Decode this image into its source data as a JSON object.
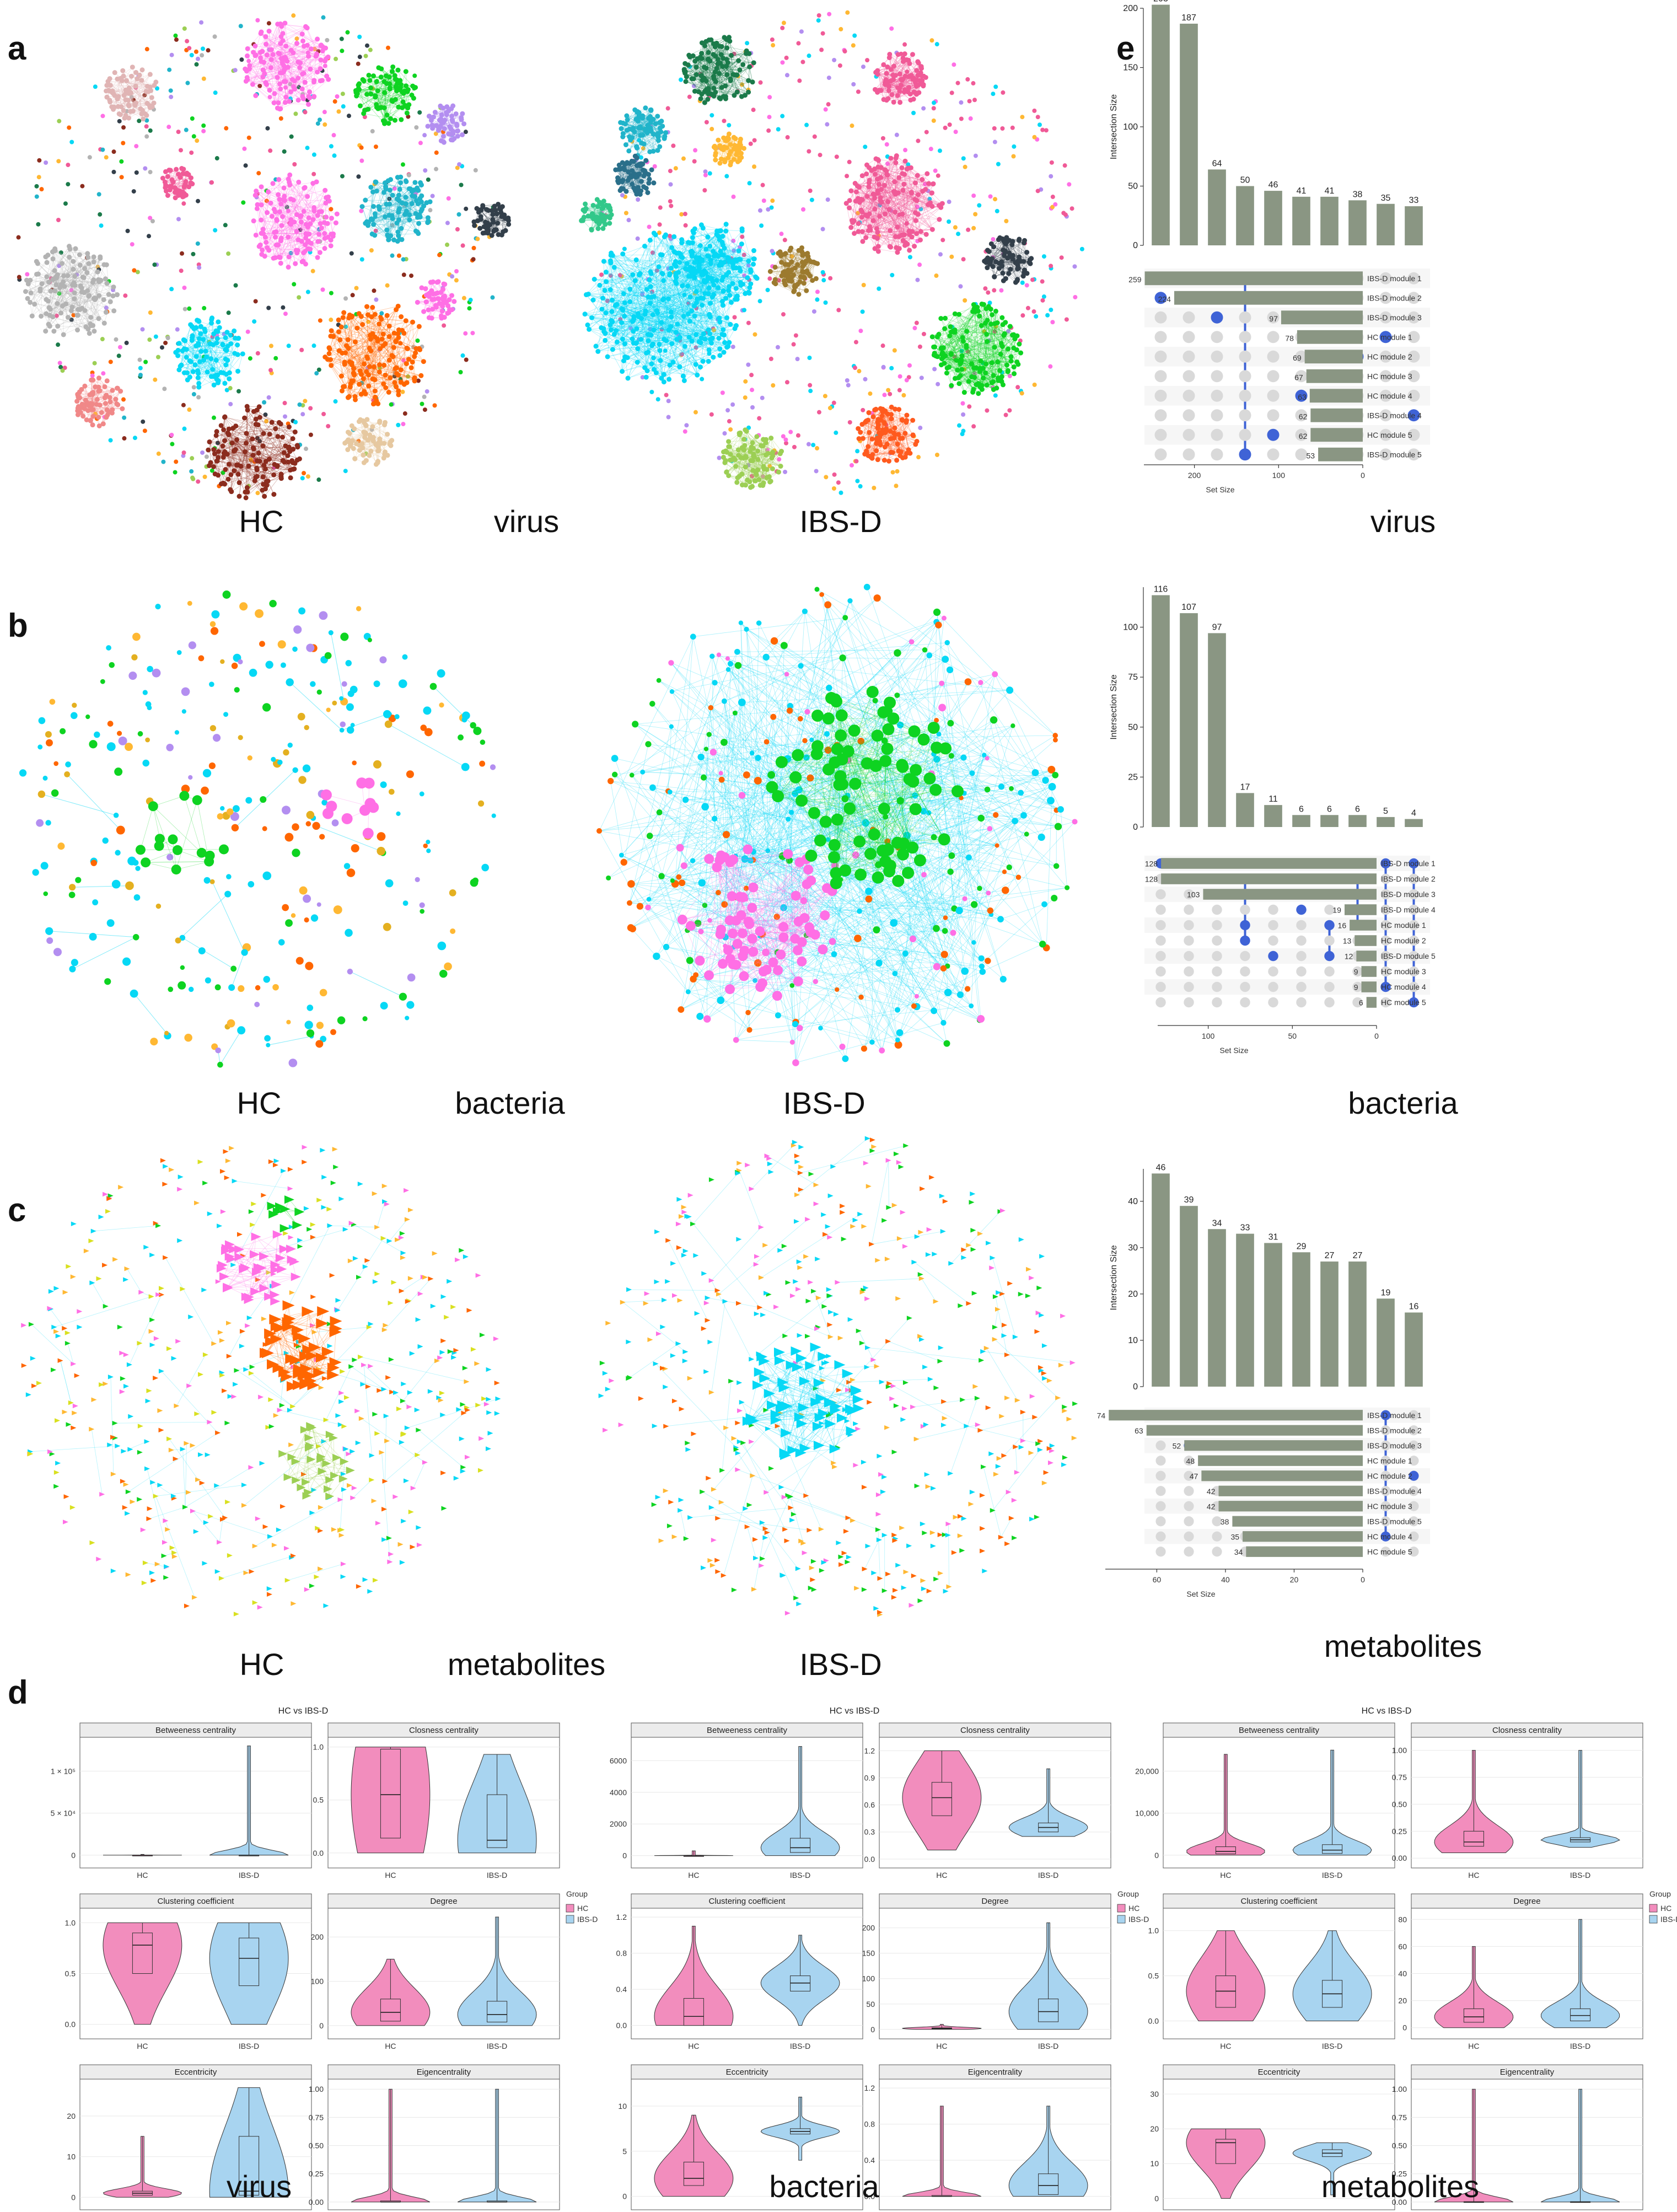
{
  "panel_labels": {
    "a": "a",
    "b": "b",
    "c": "c",
    "d": "d",
    "e": "e"
  },
  "networks": {
    "virus": {
      "caption": "virus",
      "groups": [
        "HC",
        "IBS-D"
      ]
    },
    "bacteria": {
      "caption": "bacteria",
      "groups": [
        "HC",
        "IBS-D"
      ]
    },
    "metabolites": {
      "caption": "metabolites",
      "groups": [
        "HC",
        "IBS-D"
      ]
    }
  },
  "colors": {
    "bar": "#8a9683",
    "dot_on": "#3f63d6",
    "dot_off": "#d9d9d9",
    "hc": "#f28dbd",
    "ibsd": "#a8d4f0",
    "net": [
      "#ff6fe5",
      "#0ed321",
      "#06d8f5",
      "#ff6600",
      "#8b2c1e",
      "#b3b3b3",
      "#21b4ca",
      "#1b7a4a",
      "#f05a97",
      "#9ccf54",
      "#ffb833",
      "#b38ef0",
      "#333f4a"
    ]
  },
  "chart_data": [
    {
      "type": "bar",
      "name": "upset-virus",
      "caption": "virus",
      "ylabel": "Intersection Size",
      "xlabel": "Set Size",
      "ylim": [
        0,
        200
      ],
      "yticks": [
        0,
        50,
        100,
        150,
        200
      ],
      "intersection_sizes": [
        203,
        187,
        64,
        50,
        46,
        41,
        41,
        38,
        35,
        33
      ],
      "sets": [
        "IBS-D module 1",
        "IBS-D module 2",
        "IBS-D module 3",
        "HC module 1",
        "HC module 2",
        "HC module 3",
        "HC module 4",
        "IBS-D module 4",
        "HC module 5",
        "IBS-D module 5"
      ],
      "set_sizes": [
        259,
        224,
        97,
        78,
        69,
        67,
        63,
        62,
        62,
        53
      ],
      "set_axis_max": 260,
      "set_ticks": [
        200,
        100,
        0
      ],
      "membership": [
        [
          1
        ],
        [
          0
        ],
        [
          2
        ],
        [
          0,
          9
        ],
        [
          8
        ],
        [
          6
        ],
        [
          9
        ],
        [
          4
        ],
        [
          3
        ],
        [
          7
        ]
      ]
    },
    {
      "type": "bar",
      "name": "upset-bacteria",
      "caption": "bacteria",
      "ylabel": "Intersection Size",
      "xlabel": "Set Size",
      "ylim": [
        0,
        120
      ],
      "yticks": [
        0,
        25,
        50,
        75,
        100
      ],
      "intersection_sizes": [
        116,
        107,
        97,
        17,
        11,
        6,
        6,
        6,
        5,
        4
      ],
      "sets": [
        "IBS-D module 1",
        "IBS-D module 2",
        "IBS-D module 3",
        "IBS-D module 4",
        "HC module 1",
        "HC module 2",
        "IBS-D module 5",
        "HC module 3",
        "HC module 4",
        "HC module 5"
      ],
      "set_sizes": [
        128,
        128,
        103,
        19,
        16,
        13,
        12,
        9,
        9,
        6
      ],
      "set_axis_max": 130,
      "set_ticks": [
        100,
        50,
        0
      ],
      "membership": [
        [
          0
        ],
        [
          1
        ],
        [
          2
        ],
        [
          1,
          4,
          5
        ],
        [
          6
        ],
        [
          3
        ],
        [
          4,
          6
        ],
        [
          1,
          4
        ],
        [
          0,
          8
        ],
        [
          0,
          9
        ]
      ]
    },
    {
      "type": "bar",
      "name": "upset-metabolites",
      "caption": "metabolites",
      "ylabel": "Intersection Size",
      "xlabel": "Set Size",
      "ylim": [
        0,
        47
      ],
      "yticks": [
        0,
        10,
        20,
        30,
        40
      ],
      "intersection_sizes": [
        46,
        39,
        34,
        33,
        31,
        29,
        27,
        27,
        19,
        16
      ],
      "sets": [
        "IBS-D module 1",
        "IBS-D module 2",
        "IBS-D module 3",
        "HC module 1",
        "HC module 2",
        "IBS-D module 4",
        "HC module 3",
        "IBS-D module 5",
        "HC module 4",
        "HC module 5"
      ],
      "set_sizes": [
        74,
        63,
        52,
        48,
        47,
        42,
        42,
        38,
        35,
        34
      ],
      "set_axis_max": 75,
      "set_ticks": [
        60,
        40,
        20,
        0
      ],
      "membership": [
        [
          1
        ],
        [
          2
        ],
        [
          3
        ],
        [
          0
        ],
        [
          7
        ],
        [
          5
        ],
        [
          9
        ],
        [
          6
        ],
        [
          0,
          8
        ],
        [
          4
        ]
      ]
    }
  ],
  "violins": {
    "title": "HC vs IBS-D",
    "legend_title": "Group",
    "legend_items": [
      "HC",
      "IBS-D"
    ],
    "x_labels": [
      "HC",
      "IBS-D"
    ],
    "facet_names": [
      "Betweeness centrality",
      "Closness centrality",
      "Clustering coefficient",
      "Degree",
      "Eccentricity",
      "Eigencentrality"
    ],
    "panels": [
      {
        "caption": "virus",
        "facets": [
          {
            "yticks": [
              "1 × 10⁵",
              "5 × 10⁴",
              "0"
            ],
            "tickpos": [
              100000.0,
              50000.0,
              0
            ],
            "ymin": -10000.0,
            "ymax": 135000.0,
            "hc": {
              "lo": 0,
              "hi": 900,
              "q1": 0,
              "med": 0,
              "q3": 0
            },
            "ibsd": {
              "lo": 0,
              "hi": 130000.0,
              "q1": 0,
              "med": 0,
              "q3": 0
            }
          },
          {
            "yticks": [
              "1.0",
              "0.5",
              "0.0"
            ],
            "tickpos": [
              1.0,
              0.5,
              0.0
            ],
            "ymin": -0.1,
            "ymax": 1.05,
            "hc": {
              "lo": 0.0,
              "hi": 1.0,
              "q1": 0.14,
              "med": 0.55,
              "q3": 0.98
            },
            "ibsd": {
              "lo": 0.0,
              "hi": 0.93,
              "q1": 0.05,
              "med": 0.12,
              "q3": 0.55
            }
          },
          {
            "yticks": [
              "1.0",
              "0.5",
              "0.0"
            ],
            "tickpos": [
              1.0,
              0.5,
              0.0
            ],
            "ymin": -0.1,
            "ymax": 1.1,
            "hc": {
              "lo": 0.0,
              "hi": 1.0,
              "q1": 0.5,
              "med": 0.78,
              "q3": 0.9
            },
            "ibsd": {
              "lo": 0.0,
              "hi": 1.0,
              "q1": 0.38,
              "med": 0.65,
              "q3": 0.85
            }
          },
          {
            "yticks": [
              "200",
              "100",
              "0"
            ],
            "tickpos": [
              200,
              100,
              0
            ],
            "ymin": -20,
            "ymax": 255,
            "hc": {
              "lo": 0,
              "hi": 150,
              "q1": 10,
              "med": 30,
              "q3": 60
            },
            "ibsd": {
              "lo": 0,
              "hi": 245,
              "q1": 8,
              "med": 25,
              "q3": 55
            }
          },
          {
            "yticks": [
              "20",
              "10",
              "0"
            ],
            "tickpos": [
              20,
              10,
              0
            ],
            "ymin": -2,
            "ymax": 28,
            "hc": {
              "lo": 0,
              "hi": 15,
              "q1": 0.5,
              "med": 1,
              "q3": 1.5
            },
            "ibsd": {
              "lo": 0,
              "hi": 27,
              "q1": 0.5,
              "med": 1.5,
              "q3": 15
            }
          },
          {
            "yticks": [
              "1.00",
              "0.75",
              "0.50",
              "0.25",
              "0.00"
            ],
            "tickpos": [
              1.0,
              0.75,
              0.5,
              0.25,
              0.0
            ],
            "ymin": -0.03,
            "ymax": 1.05,
            "hc": {
              "lo": 0,
              "hi": 1.0,
              "q1": 0,
              "med": 0,
              "q3": 0.01
            },
            "ibsd": {
              "lo": 0,
              "hi": 1.0,
              "q1": 0,
              "med": 0,
              "q3": 0.01
            }
          }
        ]
      },
      {
        "caption": "bacteria",
        "facets": [
          {
            "yticks": [
              "6000",
              "4000",
              "2000",
              "0"
            ],
            "tickpos": [
              6000,
              4000,
              2000,
              0
            ],
            "ymin": -500,
            "ymax": 7200,
            "hc": {
              "lo": 0,
              "hi": 300,
              "q1": 0,
              "med": 0,
              "q3": 0
            },
            "ibsd": {
              "lo": 0,
              "hi": 6900,
              "q1": 200,
              "med": 500,
              "q3": 1100
            }
          },
          {
            "yticks": [
              "1.2",
              "0.9",
              "0.6",
              "0.3",
              "0.0"
            ],
            "tickpos": [
              1.2,
              0.9,
              0.6,
              0.3,
              0.0
            ],
            "ymin": -0.05,
            "ymax": 1.3,
            "hc": {
              "lo": 0.1,
              "hi": 1.2,
              "q1": 0.48,
              "med": 0.68,
              "q3": 0.85
            },
            "ibsd": {
              "lo": 0.25,
              "hi": 1.0,
              "q1": 0.3,
              "med": 0.35,
              "q3": 0.4
            }
          },
          {
            "yticks": [
              "1.2",
              "0.8",
              "0.4",
              "0.0"
            ],
            "tickpos": [
              1.2,
              0.8,
              0.4,
              0.0
            ],
            "ymin": -0.1,
            "ymax": 1.25,
            "hc": {
              "lo": 0.0,
              "hi": 1.1,
              "q1": 0.0,
              "med": 0.1,
              "q3": 0.3
            },
            "ibsd": {
              "lo": 0.0,
              "hi": 1.0,
              "q1": 0.38,
              "med": 0.47,
              "q3": 0.55
            }
          },
          {
            "yticks": [
              "200",
              "150",
              "100",
              "50",
              "0"
            ],
            "tickpos": [
              200,
              150,
              100,
              50,
              0
            ],
            "ymin": -10,
            "ymax": 230,
            "hc": {
              "lo": 0,
              "hi": 10,
              "q1": 1,
              "med": 2,
              "q3": 3
            },
            "ibsd": {
              "lo": 0,
              "hi": 210,
              "q1": 15,
              "med": 35,
              "q3": 60
            }
          },
          {
            "yticks": [
              "10",
              "5",
              "0"
            ],
            "tickpos": [
              10,
              5,
              0
            ],
            "ymin": -1,
            "ymax": 12.5,
            "hc": {
              "lo": 0,
              "hi": 9,
              "q1": 1.2,
              "med": 2,
              "q3": 3.8
            },
            "ibsd": {
              "lo": 4,
              "hi": 11,
              "q1": 6.9,
              "med": 7.2,
              "q3": 7.5
            }
          },
          {
            "yticks": [
              "1.2",
              "0.8",
              "0.4",
              "0.0"
            ],
            "tickpos": [
              1.2,
              0.8,
              0.4,
              0.0
            ],
            "ymin": -0.1,
            "ymax": 1.25,
            "hc": {
              "lo": 0,
              "hi": 1.0,
              "q1": 0,
              "med": 0,
              "q3": 0.01
            },
            "ibsd": {
              "lo": 0,
              "hi": 1.0,
              "q1": 0.02,
              "med": 0.12,
              "q3": 0.25
            }
          }
        ]
      },
      {
        "caption": "metabolites",
        "facets": [
          {
            "yticks": [
              "20,000",
              "10,000",
              "0"
            ],
            "tickpos": [
              20000,
              10000,
              0
            ],
            "ymin": -2000,
            "ymax": 27000,
            "hc": {
              "lo": 0,
              "hi": 24000,
              "q1": 300,
              "med": 900,
              "q3": 2000
            },
            "ibsd": {
              "lo": 0,
              "hi": 25000,
              "q1": 400,
              "med": 1200,
              "q3": 2500
            }
          },
          {
            "yticks": [
              "1.00",
              "0.75",
              "0.50",
              "0.25",
              "0.00"
            ],
            "tickpos": [
              1.0,
              0.75,
              0.5,
              0.25,
              0.0
            ],
            "ymin": -0.05,
            "ymax": 1.08,
            "hc": {
              "lo": 0.05,
              "hi": 1.0,
              "q1": 0.11,
              "med": 0.15,
              "q3": 0.25
            },
            "ibsd": {
              "lo": 0.1,
              "hi": 1.0,
              "q1": 0.15,
              "med": 0.17,
              "q3": 0.19
            }
          },
          {
            "yticks": [
              "1.0",
              "0.5",
              "0.0"
            ],
            "tickpos": [
              1.0,
              0.5,
              0.0
            ],
            "ymin": -0.15,
            "ymax": 1.2,
            "hc": {
              "lo": 0.0,
              "hi": 1.0,
              "q1": 0.15,
              "med": 0.33,
              "q3": 0.5
            },
            "ibsd": {
              "lo": 0.0,
              "hi": 1.0,
              "q1": 0.15,
              "med": 0.3,
              "q3": 0.45
            }
          },
          {
            "yticks": [
              "80",
              "60",
              "40",
              "20",
              "0"
            ],
            "tickpos": [
              80,
              60,
              40,
              20,
              0
            ],
            "ymin": -5,
            "ymax": 85,
            "hc": {
              "lo": 0,
              "hi": 60,
              "q1": 4,
              "med": 8,
              "q3": 14
            },
            "ibsd": {
              "lo": 0,
              "hi": 80,
              "q1": 5,
              "med": 9,
              "q3": 14
            }
          },
          {
            "yticks": [
              "30",
              "20",
              "10",
              "0"
            ],
            "tickpos": [
              30,
              20,
              10,
              0
            ],
            "ymin": -2,
            "ymax": 33,
            "hc": {
              "lo": 0,
              "hi": 20,
              "q1": 10,
              "med": 16,
              "q3": 17
            },
            "ibsd": {
              "lo": 1,
              "hi": 16,
              "q1": 12,
              "med": 13,
              "q3": 14
            }
          },
          {
            "yticks": [
              "1.00",
              "0.75",
              "0.50",
              "0.25",
              "0.00"
            ],
            "tickpos": [
              1.0,
              0.75,
              0.5,
              0.25,
              0.0
            ],
            "ymin": -0.03,
            "ymax": 1.05,
            "hc": {
              "lo": 0,
              "hi": 1.0,
              "q1": 0,
              "med": 0,
              "q3": 0.003
            },
            "ibsd": {
              "lo": 0,
              "hi": 1.0,
              "q1": 0,
              "med": 0,
              "q3": 0.003
            }
          }
        ]
      }
    ]
  }
}
